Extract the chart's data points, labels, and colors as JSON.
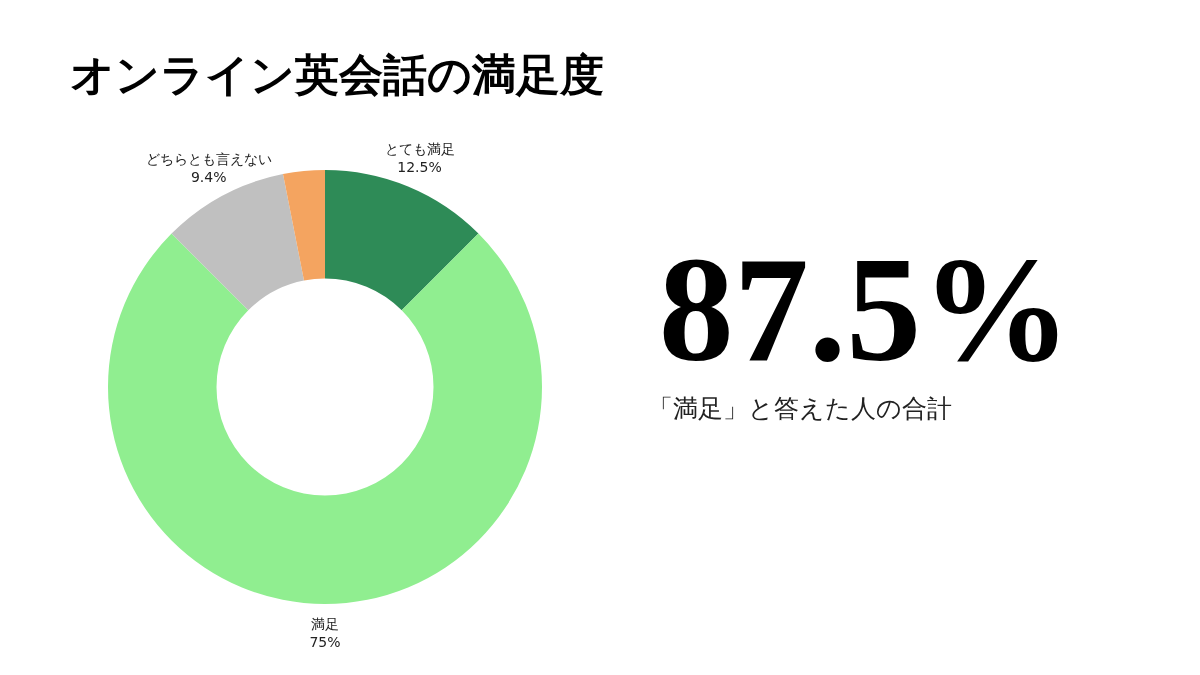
{
  "chart_data": {
    "type": "donut",
    "title": "オンライン英会話の満足度",
    "categories": [
      "とても満足",
      "満足",
      "どちらとも言えない",
      null
    ],
    "values": [
      12.5,
      75,
      9.4,
      3.1
    ],
    "colors": [
      "#2e8b57",
      "#90ee90",
      "#c0c0c0",
      "#f4a460"
    ],
    "value_labels": [
      "12.5%",
      "75%",
      "9.4%",
      null
    ],
    "annotations": [
      "87.5%",
      "「満足」と答えた人の合計"
    ]
  }
}
